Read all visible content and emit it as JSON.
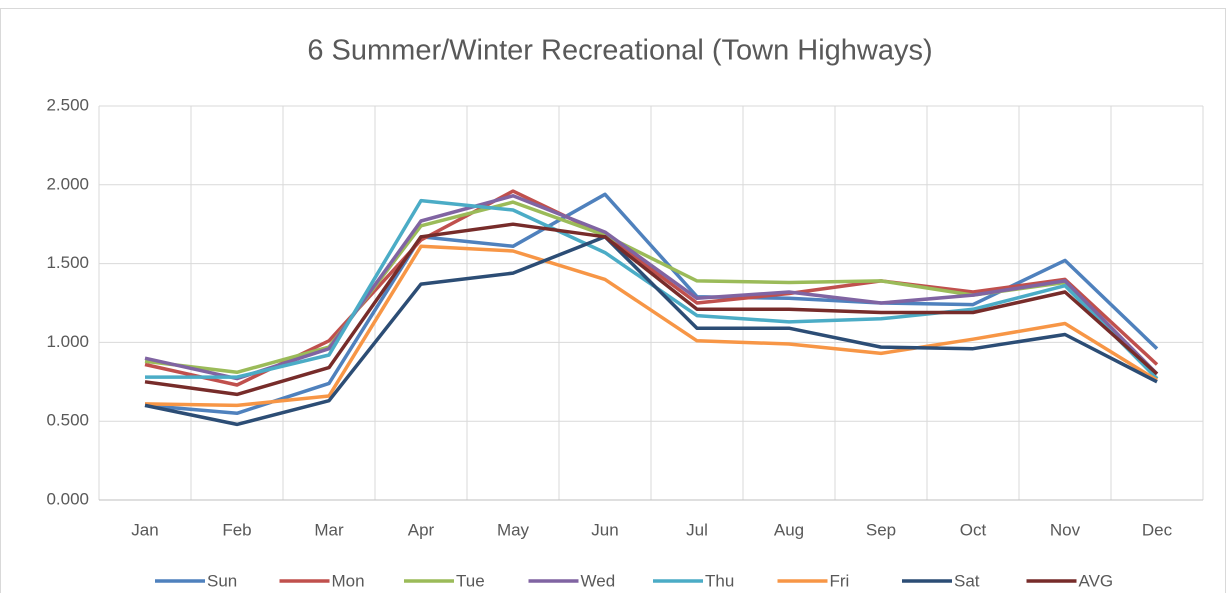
{
  "chart_data": {
    "type": "line",
    "title": "6 Summer/Winter Recreational (Town Highways)",
    "categories": [
      "Jan",
      "Feb",
      "Mar",
      "Apr",
      "May",
      "Jun",
      "Jul",
      "Aug",
      "Sep",
      "Oct",
      "Nov",
      "Dec"
    ],
    "series": [
      {
        "name": "Sun",
        "color": "#4F81BD",
        "values": [
          0.6,
          0.55,
          0.74,
          1.67,
          1.61,
          1.94,
          1.29,
          1.28,
          1.25,
          1.24,
          1.52,
          0.96
        ]
      },
      {
        "name": "Mon",
        "color": "#C0504D",
        "values": [
          0.86,
          0.73,
          1.01,
          1.65,
          1.96,
          1.68,
          1.25,
          1.31,
          1.39,
          1.32,
          1.4,
          0.86
        ]
      },
      {
        "name": "Tue",
        "color": "#9BBB59",
        "values": [
          0.88,
          0.81,
          0.97,
          1.74,
          1.89,
          1.68,
          1.39,
          1.38,
          1.39,
          1.3,
          1.38,
          0.77
        ]
      },
      {
        "name": "Wed",
        "color": "#8064A2",
        "values": [
          0.9,
          0.77,
          0.96,
          1.77,
          1.93,
          1.7,
          1.28,
          1.32,
          1.25,
          1.3,
          1.39,
          0.8
        ]
      },
      {
        "name": "Thu",
        "color": "#4BACC6",
        "values": [
          0.78,
          0.78,
          0.92,
          1.9,
          1.84,
          1.57,
          1.17,
          1.13,
          1.15,
          1.21,
          1.36,
          0.77
        ]
      },
      {
        "name": "Fri",
        "color": "#F79646",
        "values": [
          0.61,
          0.6,
          0.66,
          1.61,
          1.58,
          1.4,
          1.01,
          0.99,
          0.93,
          1.02,
          1.12,
          0.76
        ]
      },
      {
        "name": "Sat",
        "color": "#2C4D75",
        "values": [
          0.6,
          0.48,
          0.63,
          1.37,
          1.44,
          1.67,
          1.09,
          1.09,
          0.97,
          0.96,
          1.05,
          0.75
        ]
      },
      {
        "name": "AVG",
        "color": "#772C2A",
        "values": [
          0.75,
          0.67,
          0.84,
          1.67,
          1.75,
          1.67,
          1.21,
          1.21,
          1.19,
          1.19,
          1.32,
          0.8
        ]
      }
    ],
    "ylim": [
      0,
      2.5
    ],
    "yticks": [
      {
        "value": 0,
        "label": "0.000"
      },
      {
        "value": 0.5,
        "label": "0.500"
      },
      {
        "value": 1,
        "label": "1.000"
      },
      {
        "value": 1.5,
        "label": "1.500"
      },
      {
        "value": 2,
        "label": "2.000"
      },
      {
        "value": 2.5,
        "label": "2.500"
      }
    ],
    "grid": true,
    "legend": "bottom"
  }
}
